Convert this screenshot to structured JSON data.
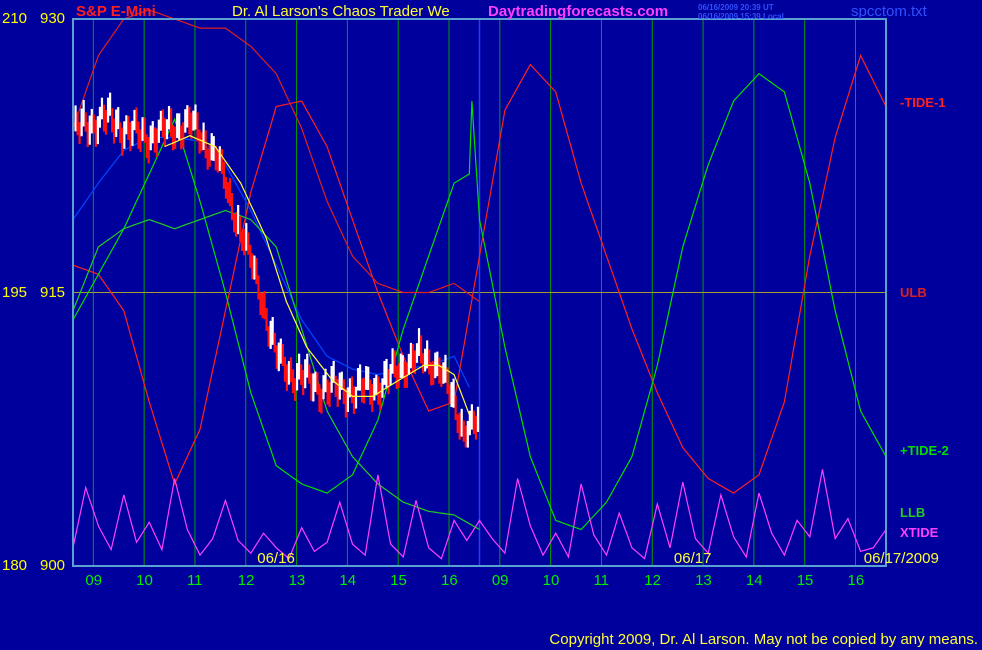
{
  "header": {
    "symbol": "S&P E-Mini",
    "title": "Dr. Al Larson's Chaos Trader We",
    "site": "Daytradingforecasts.com",
    "stamp_ut": "06/16/2009 20:39 UT",
    "stamp_local": "06/16/2009 15:39 Local",
    "file": "spcctom.txt"
  },
  "copyright": "Copyright 2009, Dr. Al Larson. May not be copied by any means.",
  "colors": {
    "background": "#00009c",
    "frame": "#5aa0d0",
    "grid": "#00a000",
    "price_up": "#ffffff",
    "price_down": "#ff1010",
    "tide1": "#ff2020",
    "tide2": "#00dd00",
    "ulb": "#dd2020",
    "llb": "#22cc22",
    "xtide": "#ff40ff",
    "ma_blue": "#0040ff",
    "ma_yellow": "#ffff40",
    "now_line": "#2040ff"
  },
  "chart_data": {
    "type": "line",
    "y_axis_left_labels": [
      {
        "a": "210",
        "b": "930",
        "value": 930
      },
      {
        "a": "195",
        "b": "915",
        "value": 915
      },
      {
        "a": "180",
        "b": "900",
        "value": 900
      }
    ],
    "ylim": [
      900,
      930
    ],
    "xlim": [
      0,
      16
    ],
    "x_tick_labels": [
      {
        "label": "09",
        "t": 0.4
      },
      {
        "label": "10",
        "t": 1.4
      },
      {
        "label": "11",
        "t": 2.4
      },
      {
        "label": "12",
        "t": 3.4
      },
      {
        "label": "13",
        "t": 4.4
      },
      {
        "label": "14",
        "t": 5.4
      },
      {
        "label": "15",
        "t": 6.4
      },
      {
        "label": "16",
        "t": 7.4
      },
      {
        "label": "09",
        "t": 8.4
      },
      {
        "label": "10",
        "t": 9.4
      },
      {
        "label": "11",
        "t": 10.4
      },
      {
        "label": "12",
        "t": 11.4
      },
      {
        "label": "13",
        "t": 12.4
      },
      {
        "label": "14",
        "t": 13.4
      },
      {
        "label": "15",
        "t": 14.4
      },
      {
        "label": "16",
        "t": 15.4
      }
    ],
    "vertical_grid_t": [
      0.4,
      1.4,
      2.4,
      3.4,
      4.4,
      5.4,
      6.4,
      7.4,
      8.4,
      9.4,
      10.4,
      11.4,
      12.4,
      13.4,
      14.4,
      15.4
    ],
    "date_labels": [
      {
        "label": "06/16",
        "t": 4.0
      },
      {
        "label": "06/17",
        "t": 12.2
      },
      {
        "label": "06/17/2009",
        "t": 16.3
      }
    ],
    "now_t": 8.0,
    "horizontal_ref": 915,
    "series": [
      {
        "name": "-TIDE-1",
        "key": "tide1",
        "label_y": 925.4,
        "x": [
          0,
          0.5,
          1,
          1.5,
          2,
          2.5,
          3,
          3.5,
          4,
          4.5,
          5,
          5.5,
          6,
          6.5,
          7,
          7.5,
          8,
          8.5,
          9,
          9.5,
          10,
          10.5,
          11,
          11.5,
          12,
          12.5,
          13,
          13.5,
          14,
          14.5,
          15,
          15.5,
          16
        ],
        "y": [
          916.5,
          916.0,
          914.0,
          909.0,
          904.5,
          907.5,
          914.0,
          920.5,
          925.2,
          925.5,
          923.0,
          919.0,
          915.0,
          911.5,
          908.5,
          909.0,
          917.0,
          925.0,
          927.5,
          926.0,
          921.0,
          917.0,
          913.0,
          909.5,
          906.5,
          904.8,
          904.0,
          905.0,
          909.0,
          917.0,
          923.5,
          928.0,
          925.2
        ]
      },
      {
        "name": "+TIDE-2",
        "key": "tide2",
        "label_y": 906.3,
        "x": [
          0,
          0.5,
          1,
          1.5,
          2,
          2.5,
          3,
          3.5,
          4,
          4.5,
          5,
          5.5,
          6,
          6.5,
          7,
          7.5,
          7.8,
          7.85,
          8,
          8.5,
          9,
          9.5,
          10,
          10.5,
          11,
          11.5,
          12,
          12.5,
          13,
          13.5,
          14,
          14.5,
          15,
          15.5,
          16
        ],
        "y": [
          913.5,
          916.0,
          918.5,
          921.5,
          924.5,
          920.0,
          915.0,
          909.5,
          905.5,
          904.5,
          904.0,
          905.0,
          908.0,
          913.0,
          917.0,
          921.0,
          921.5,
          925.5,
          919.0,
          912.0,
          906.0,
          902.5,
          902.0,
          903.5,
          906.0,
          911.0,
          917.5,
          922.0,
          925.5,
          927.0,
          926.0,
          921.0,
          914.0,
          908.5,
          906.0
        ]
      },
      {
        "name": "ULB",
        "key": "ulb",
        "label_y": 915,
        "x": [
          0,
          0.5,
          1,
          1.5,
          2,
          2.5,
          3,
          3.5,
          4,
          4.5,
          5,
          5.5,
          6,
          6.5,
          7,
          7.5,
          8
        ],
        "y": [
          924.0,
          928.0,
          930.0,
          930.5,
          930.0,
          929.5,
          929.5,
          928.5,
          927.0,
          924.0,
          920.0,
          917.0,
          915.5,
          915.0,
          915.0,
          915.5,
          914.5
        ]
      },
      {
        "name": "LLB",
        "key": "llb",
        "label_y": 902.9,
        "x": [
          0,
          0.5,
          1,
          1.5,
          2,
          2.5,
          3,
          3.5,
          4,
          4.5,
          5,
          5.5,
          6,
          6.5,
          7,
          7.5,
          8
        ],
        "y": [
          914.0,
          917.5,
          918.5,
          919.0,
          918.5,
          919.0,
          919.5,
          919.0,
          917.5,
          913.0,
          908.5,
          906.0,
          904.5,
          903.5,
          903.0,
          902.8,
          902.0
        ]
      },
      {
        "name": "XTIDE",
        "key": "xtide",
        "label_y": 901.8,
        "x": [
          0,
          0.25,
          0.5,
          0.75,
          1,
          1.25,
          1.5,
          1.75,
          2,
          2.25,
          2.5,
          2.75,
          3,
          3.25,
          3.5,
          3.75,
          4,
          4.25,
          4.5,
          4.75,
          5,
          5.25,
          5.5,
          5.75,
          6,
          6.25,
          6.5,
          6.75,
          7,
          7.25,
          7.5,
          7.75,
          8,
          8.25,
          8.5,
          8.75,
          9,
          9.25,
          9.5,
          9.75,
          10,
          10.25,
          10.5,
          10.75,
          11,
          11.25,
          11.5,
          11.75,
          12,
          12.25,
          12.5,
          12.75,
          13,
          13.25,
          13.5,
          13.75,
          14,
          14.25,
          14.5,
          14.75,
          15,
          15.25,
          15.5,
          15.75,
          16
        ],
        "y": [
          901.0,
          904.3,
          902.2,
          900.9,
          903.9,
          901.3,
          902.4,
          900.9,
          904.8,
          902.0,
          900.6,
          901.5,
          903.6,
          901.4,
          900.7,
          901.8,
          901.0,
          900.4,
          902.1,
          900.8,
          901.3,
          903.5,
          901.2,
          900.6,
          905.0,
          901.2,
          900.5,
          903.6,
          901.0,
          900.4,
          902.5,
          901.4,
          902.5,
          901.5,
          900.7,
          904.8,
          902.2,
          900.6,
          901.8,
          900.5,
          904.5,
          901.7,
          900.6,
          902.9,
          901.0,
          900.4,
          903.4,
          901.0,
          904.6,
          901.5,
          900.7,
          903.9,
          901.6,
          900.5,
          904.0,
          901.8,
          900.6,
          902.5,
          901.6,
          905.3,
          901.5,
          902.6,
          900.8,
          901.0,
          902.0
        ]
      }
    ],
    "price_series": {
      "name": "S&P E-Mini",
      "step": 0.04,
      "start": 0.05,
      "x": [
        0,
        0.6,
        1.4,
        2.3,
        2.8,
        3.2,
        3.7,
        4.0,
        4.3,
        4.9,
        5.6,
        6.1,
        6.5,
        6.8,
        7.2,
        7.7,
        8.0
      ],
      "y": [
        923.8,
        924.6,
        923.5,
        924.3,
        922.6,
        919.3,
        915.0,
        911.5,
        910.6,
        909.8,
        909.6,
        910.0,
        911.0,
        911.5,
        911.0,
        907.5,
        907.7
      ]
    },
    "ma_blue": {
      "x": [
        0,
        0.5,
        1,
        1.5,
        2,
        2.5,
        3,
        3.5,
        4,
        4.5,
        5,
        5.5,
        6,
        6.5,
        7,
        7.5,
        7.8
      ],
      "y": [
        919.0,
        921.0,
        922.8,
        923.5,
        923.5,
        923.3,
        922.0,
        919.5,
        916.5,
        913.5,
        911.5,
        910.8,
        910.5,
        910.8,
        911.0,
        911.5,
        909.8
      ]
    },
    "ma_yellow": {
      "x": [
        1.8,
        2.3,
        2.8,
        3.3,
        3.8,
        4.2,
        4.6,
        5.1,
        5.5,
        5.9,
        6.3,
        6.6,
        6.9,
        7.2,
        7.5,
        7.8
      ],
      "y": [
        923.0,
        923.6,
        923.0,
        921.0,
        918.0,
        914.5,
        912.0,
        910.2,
        909.3,
        909.3,
        910.0,
        910.5,
        911.0,
        911.0,
        910.5,
        908.3
      ]
    }
  }
}
